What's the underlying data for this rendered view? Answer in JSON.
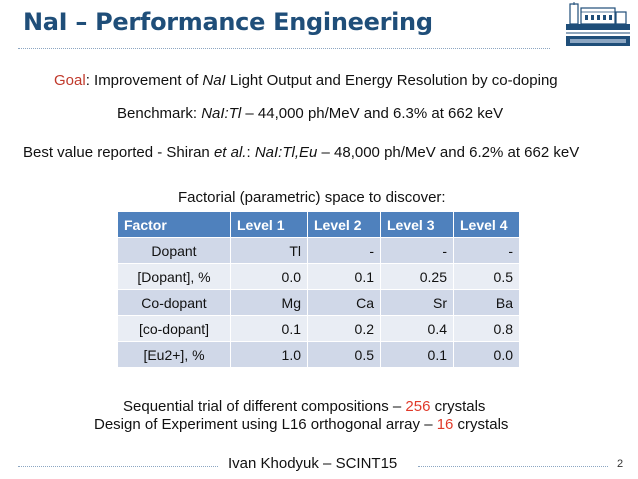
{
  "title": "NaI – Performance Engineering",
  "goal": {
    "key": "Goal",
    "t1": ": Improvement of ",
    "i1": "NaI",
    "t2": " Light Output and Energy Resolution by co-doping"
  },
  "benchmark": {
    "t1": "Benchmark: ",
    "i1": "NaI:Tl",
    "t2": " – 44,000 ph/MeV and 6.3% at 662 keV"
  },
  "best": {
    "t1": "Best value reported - Shiran ",
    "i1": "et al.",
    "t2": ": ",
    "i2": "NaI:Tl,Eu",
    "t3": " – 48,000 ph/MeV and 6.2% at 662 keV"
  },
  "table_caption": "Factorial (parametric) space to discover:",
  "table": {
    "headers": [
      "Factor",
      "Level 1",
      "Level 2",
      "Level 3",
      "Level 4"
    ],
    "rows": [
      [
        "Dopant",
        "Tl",
        "-",
        "-",
        "-"
      ],
      [
        "[Dopant], %",
        "0.0",
        "0.1",
        "0.25",
        "0.5"
      ],
      [
        "Co-dopant",
        "Mg",
        "Ca",
        "Sr",
        "Ba"
      ],
      [
        "[co-dopant]",
        "0.1",
        "0.2",
        "0.4",
        "0.8"
      ],
      [
        "[Eu2+], %",
        "1.0",
        "0.5",
        "0.1",
        "0.0"
      ]
    ]
  },
  "sequential": {
    "t1": "Sequential trial of different compositions – ",
    "num": "256",
    "t2": " crystals"
  },
  "doe": {
    "t1": "Design of Experiment using L16 orthogonal array – ",
    "num": "16",
    "t2": " crystals"
  },
  "footer": "Ivan Khodyuk – SCINT15",
  "page_number": "2",
  "colors": {
    "title": "#1f4e79",
    "table_header": "#4f81bd",
    "row_odd": "#d0d8e8",
    "row_even": "#e9edf4",
    "highlight": "#e03a2a"
  },
  "logo_icon": "berkeley-lab-logo-icon"
}
